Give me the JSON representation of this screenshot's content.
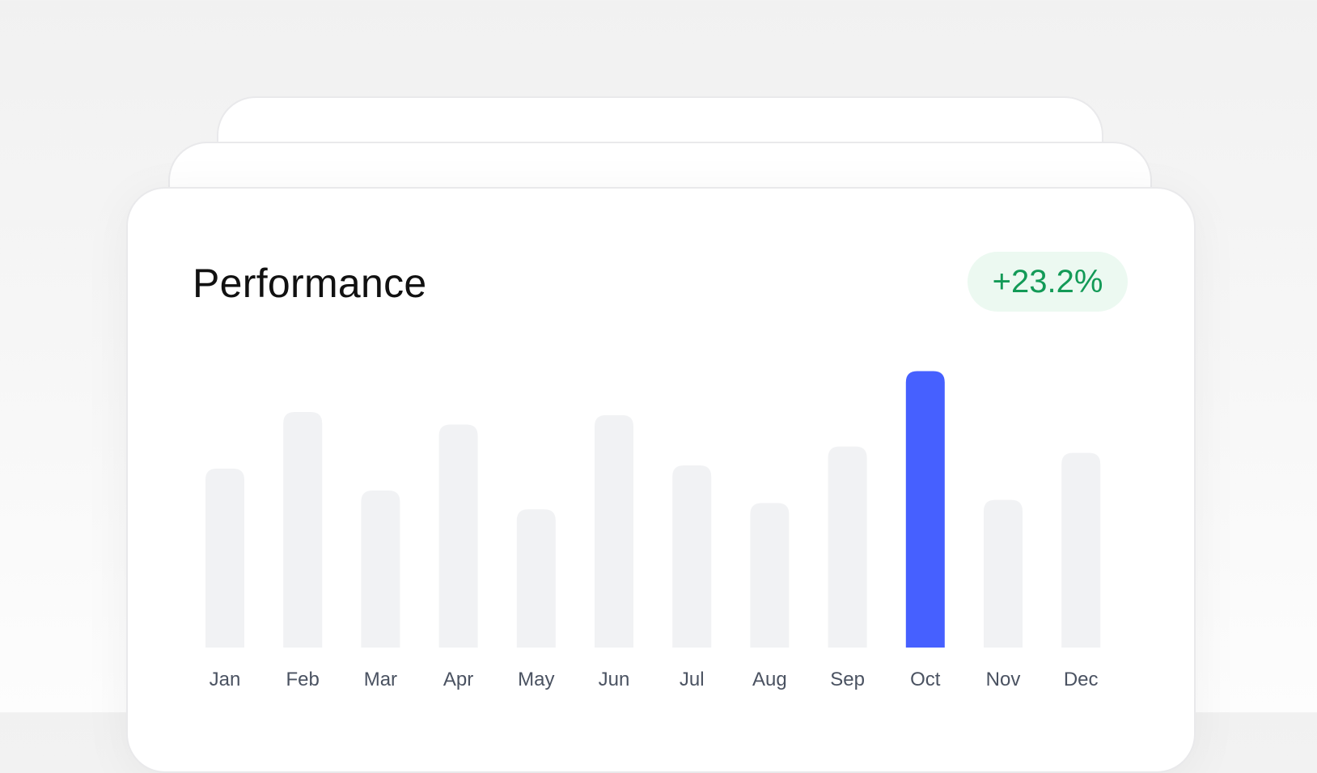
{
  "card": {
    "title": "Performance",
    "delta": "+23.2%"
  },
  "colors": {
    "highlight_bar": "#4660ff",
    "default_bar": "#f1f2f4",
    "delta_text": "#139a57",
    "delta_bg": "#ecf9f1",
    "tick_label": "#4a5261"
  },
  "chart_data": {
    "type": "bar",
    "categories": [
      "Jan",
      "Feb",
      "Mar",
      "Apr",
      "May",
      "Jun",
      "Jul",
      "Aug",
      "Sep",
      "Oct",
      "Nov",
      "Dec"
    ],
    "values": [
      57,
      75,
      50,
      71,
      44,
      74,
      58,
      46,
      64,
      88,
      47,
      62
    ],
    "highlight": "Oct",
    "ylim": [
      0,
      100
    ],
    "grid": false,
    "title": "",
    "xlabel": "",
    "ylabel": ""
  }
}
